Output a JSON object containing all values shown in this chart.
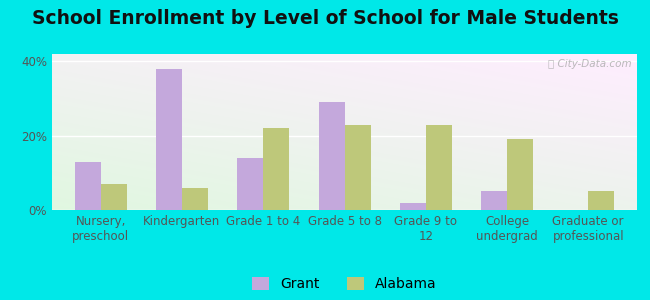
{
  "title": "School Enrollment by Level of School for Male Students",
  "categories": [
    "Nursery,\npreschool",
    "Kindergarten",
    "Grade 1 to 4",
    "Grade 5 to 8",
    "Grade 9 to\n12",
    "College\nundergrad",
    "Graduate or\nprofessional"
  ],
  "grant_values": [
    13,
    38,
    14,
    29,
    2,
    5,
    0
  ],
  "alabama_values": [
    7,
    6,
    22,
    23,
    23,
    19,
    5
  ],
  "grant_color": "#c4a8dc",
  "alabama_color": "#bec87a",
  "background_color": "#00e8e8",
  "ylim": [
    0,
    42
  ],
  "yticks": [
    0,
    20,
    40
  ],
  "ytick_labels": [
    "0%",
    "20%",
    "40%"
  ],
  "bar_width": 0.32,
  "title_fontsize": 13.5,
  "tick_fontsize": 8.5,
  "legend_fontsize": 10,
  "watermark": "ⓘ City-Data.com"
}
